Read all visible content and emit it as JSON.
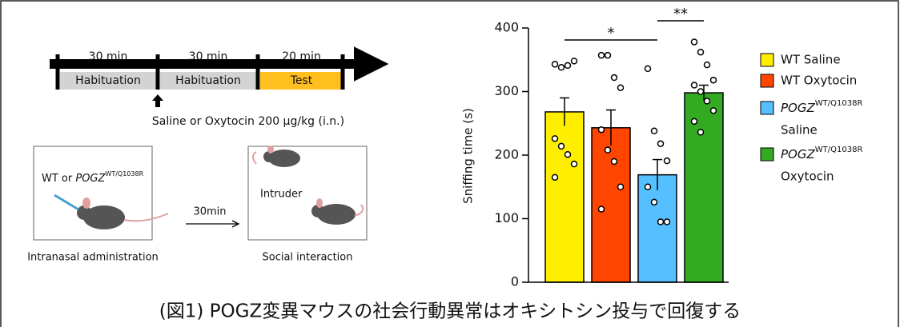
{
  "diagram": {
    "timeline": [
      {
        "duration": "30 min",
        "label": "Habituation",
        "color": "#d3d3d3"
      },
      {
        "duration": "30 min",
        "label": "Habituation",
        "color": "#d3d3d3"
      },
      {
        "duration": "20 min",
        "label": "Test",
        "color": "#ffbf1f"
      }
    ],
    "injection": "Saline or Oxytocin 200 μg/kg (i.n.)",
    "box1": {
      "prefix": "WT or ",
      "gene": "POGZ",
      "genotype": "WT/Q1038R",
      "caption": "Intranasal administration"
    },
    "arrow": "30min",
    "box2": {
      "mouse": "Intruder",
      "caption": "Social interaction"
    }
  },
  "chart_data": {
    "type": "bar",
    "ylabel": "Sniffing time (s)",
    "ylim": [
      0,
      400
    ],
    "yticks": [
      0,
      100,
      200,
      300,
      400
    ],
    "series": [
      {
        "name": "WT Saline",
        "color": "#ffee00",
        "values": [
          268
        ],
        "errors": [
          22
        ],
        "points": [
          343,
          338,
          341,
          348,
          226,
          214,
          201,
          186,
          165
        ]
      },
      {
        "name": "WT Oxytocin",
        "color": "#ff4500",
        "values": [
          243
        ],
        "errors": [
          28
        ],
        "points": [
          357,
          357,
          322,
          306,
          240,
          208,
          190,
          150,
          115
        ]
      },
      {
        "gene": "POGZ",
        "genotype": "WT/Q1038R",
        "name": "Saline",
        "color": "#55c0ff",
        "values": [
          169
        ],
        "errors": [
          24
        ],
        "points": [
          336,
          238,
          218,
          191,
          150,
          126,
          95,
          95
        ]
      },
      {
        "gene": "POGZ",
        "genotype": "WT/Q1038R",
        "name": "Oxytocin",
        "color": "#33aa22",
        "values": [
          298
        ],
        "errors": [
          12
        ],
        "points": [
          378,
          362,
          342,
          318,
          310,
          300,
          285,
          270,
          253,
          236
        ]
      }
    ],
    "annotations": [
      {
        "text": "*",
        "from": 0,
        "to": 2
      },
      {
        "text": "**",
        "from": 2,
        "to": 3
      }
    ]
  },
  "caption": "(図1) POGZ変異マウスの社会行動異常はオキシトシン投与で回復する"
}
